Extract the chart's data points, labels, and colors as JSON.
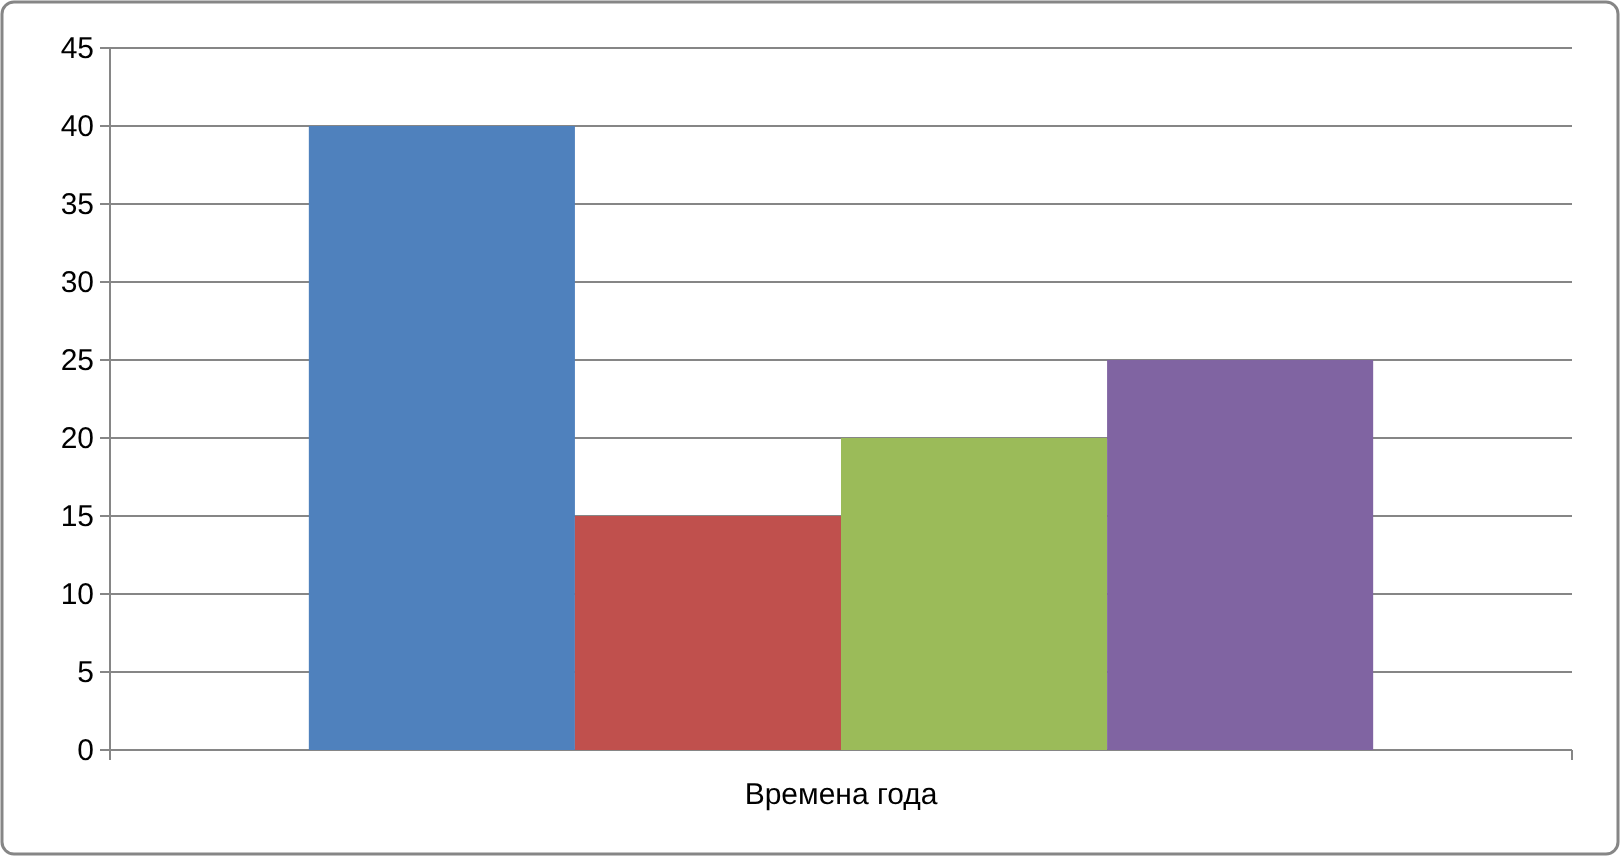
{
  "chart_data": {
    "type": "bar",
    "categories": [
      "Времена года"
    ],
    "series": [
      {
        "color": "#4f81bd",
        "values": [
          40
        ]
      },
      {
        "color": "#c0504d",
        "values": [
          15
        ]
      },
      {
        "color": "#9bbb59",
        "values": [
          20
        ]
      },
      {
        "color": "#8064a2",
        "values": [
          25
        ]
      }
    ],
    "ylim": [
      0,
      45
    ],
    "yticks": [
      0,
      5,
      10,
      15,
      20,
      25,
      30,
      35,
      40,
      45
    ],
    "grid": "y"
  }
}
